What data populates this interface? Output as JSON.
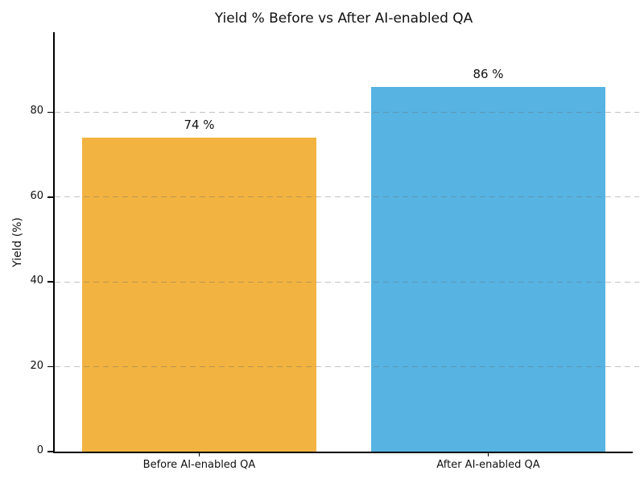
{
  "chart_data": {
    "type": "bar",
    "title": "Yield % Before vs After AI-enabled QA",
    "categories": [
      "Before AI-enabled QA",
      "After AI-enabled QA"
    ],
    "values": [
      74,
      86
    ],
    "bar_labels": [
      "74 %",
      "86 %"
    ],
    "bar_colors": [
      "#F2B340",
      "#56B3E2"
    ],
    "xlabel": "",
    "ylabel": "Yield (%)",
    "ylim": [
      0,
      98.5
    ],
    "yticks": [
      0,
      20,
      40,
      60,
      80
    ],
    "grid": "horizontal-dashed-on-top",
    "grid_color": "#c9c9c9",
    "axis_color": "#000000",
    "text_color": "#111111",
    "background_color": "#ffffff",
    "legend": "none"
  }
}
